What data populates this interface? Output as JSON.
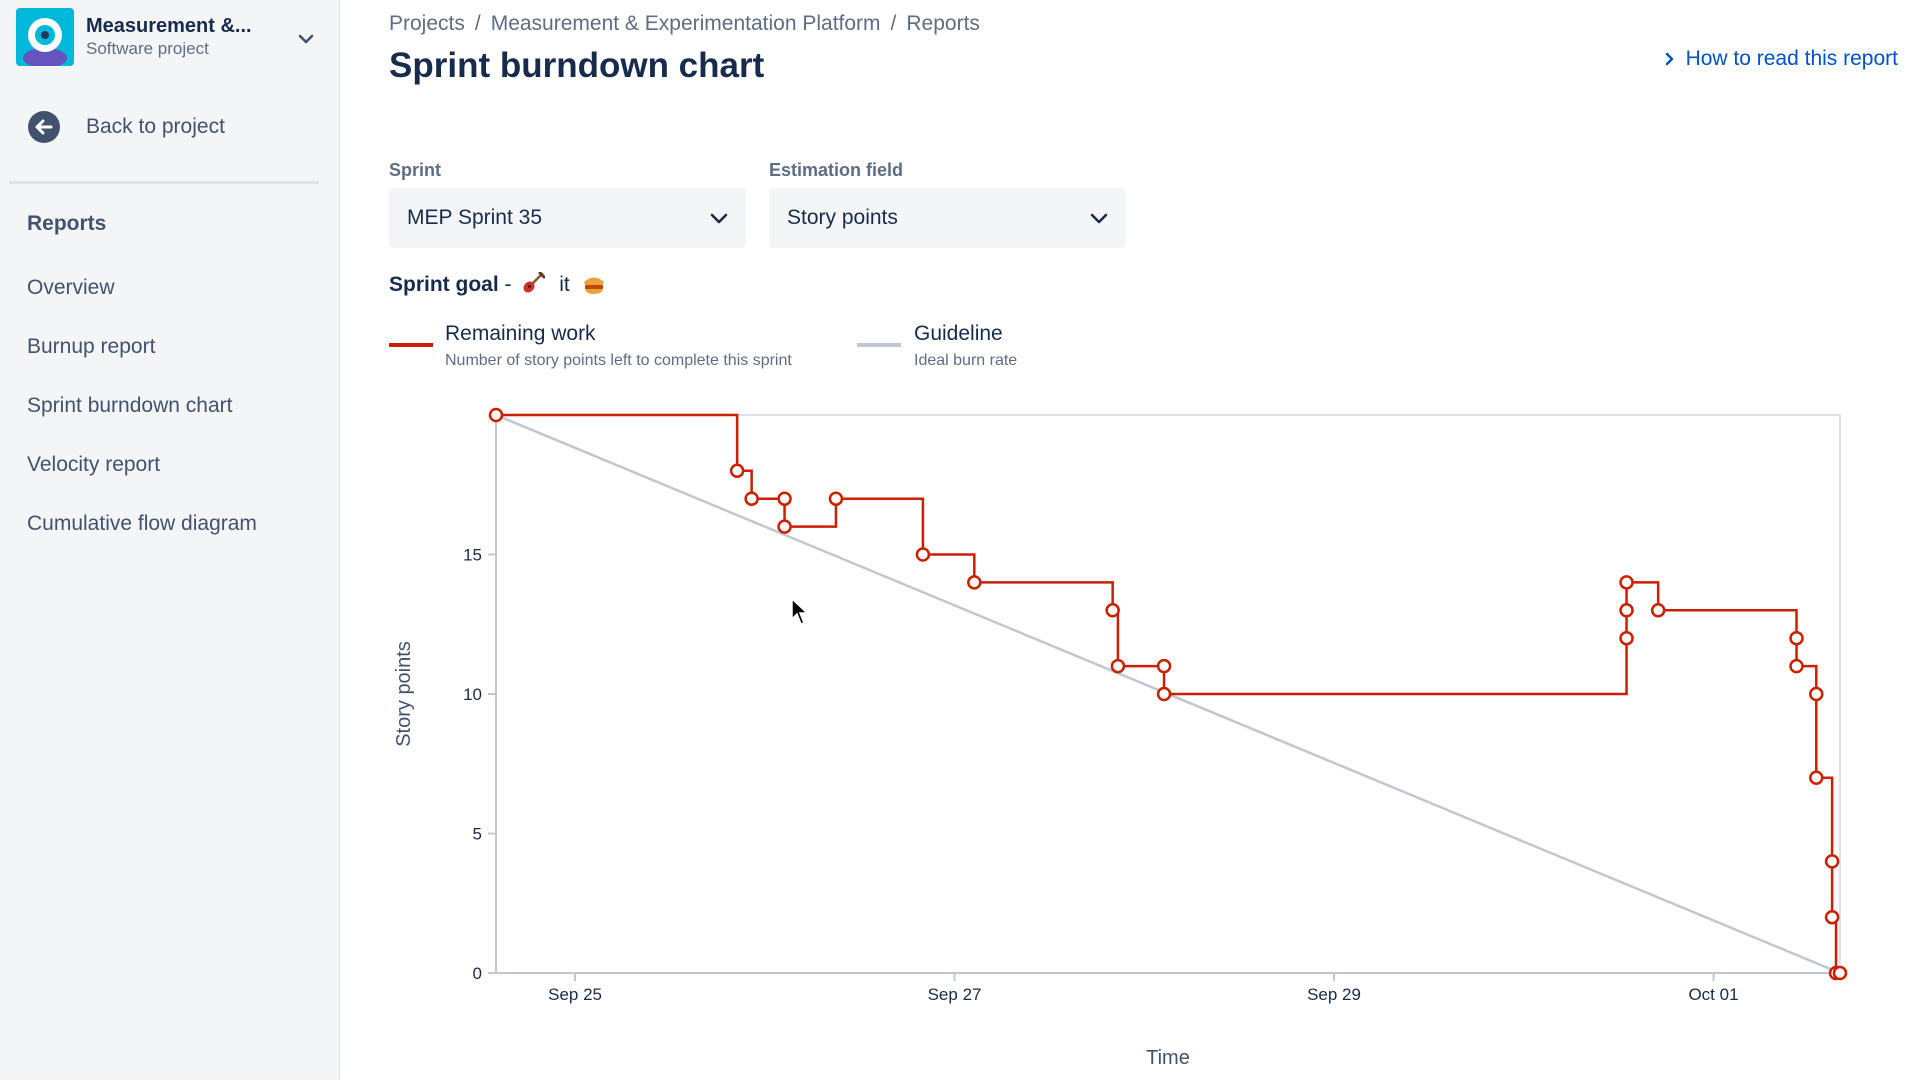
{
  "sidebar": {
    "project_name": "Measurement &...",
    "project_type": "Software project",
    "back_label": "Back to project",
    "section_heading": "Reports",
    "items": [
      {
        "label": "Overview"
      },
      {
        "label": "Burnup report"
      },
      {
        "label": "Sprint burndown chart"
      },
      {
        "label": "Velocity report"
      },
      {
        "label": "Cumulative flow diagram"
      }
    ]
  },
  "breadcrumb": [
    "Projects",
    "Measurement & Experimentation Platform",
    "Reports"
  ],
  "page_title": "Sprint burndown chart",
  "help_link": "How to read this report",
  "filters": {
    "sprint_label": "Sprint",
    "sprint_value": "MEP Sprint 35",
    "estimation_label": "Estimation field",
    "estimation_value": "Story points"
  },
  "sprint_goal": {
    "label": "Sprint goal",
    "text": "it"
  },
  "legend": [
    {
      "title": "Remaining work",
      "subtitle": "Number of story points left to complete this sprint",
      "color": "#cc1f00"
    },
    {
      "title": "Guideline",
      "subtitle": "Ideal burn rate",
      "color": "#c1c7d0"
    }
  ],
  "chart_data": {
    "type": "line",
    "xlabel": "Time",
    "ylabel": "Story points",
    "ylim": [
      0,
      20
    ],
    "xlim": [
      "2023-09-24 14:00",
      "2023-10-01 16:00"
    ],
    "yticks": [
      0,
      5,
      10,
      15
    ],
    "xticks": [
      {
        "label": "Sep 25",
        "at": "2023-09-25 00:00"
      },
      {
        "label": "Sep 27",
        "at": "2023-09-27 00:00"
      },
      {
        "label": "Sep 29",
        "at": "2023-09-29 00:00"
      },
      {
        "label": "Oct 01",
        "at": "2023-10-01 00:00"
      }
    ],
    "grid": false,
    "series": [
      {
        "name": "Remaining work",
        "color": "#cc1f00",
        "step": true,
        "x": [
          "2023-09-24 14:00",
          "2023-09-25 20:30",
          "2023-09-25 22:20",
          "2023-09-26 02:30",
          "2023-09-26 02:30",
          "2023-09-26 09:00",
          "2023-09-26 20:00",
          "2023-09-27 02:30",
          "2023-09-27 20:00",
          "2023-09-27 20:40",
          "2023-09-28 02:30",
          "2023-09-28 02:30",
          "2023-09-30 13:00",
          "2023-09-30 13:00",
          "2023-09-30 13:00",
          "2023-09-30 17:00",
          "2023-10-01 10:30",
          "2023-10-01 10:30",
          "2023-10-01 13:00",
          "2023-10-01 13:00",
          "2023-10-01 15:00",
          "2023-10-01 15:00",
          "2023-10-01 15:30",
          "2023-10-01 16:00"
        ],
        "y": [
          20,
          18,
          17,
          17,
          16,
          17,
          15,
          14,
          13,
          11,
          11,
          10,
          12,
          13,
          14,
          13,
          12,
          11,
          10,
          7,
          4,
          2,
          0,
          0
        ]
      },
      {
        "name": "Guideline",
        "color": "#c1c7d0",
        "x": [
          "2023-09-24 14:00",
          "2023-10-01 16:00"
        ],
        "y": [
          20,
          0
        ]
      }
    ]
  },
  "colors": {
    "accent": "#0052cc",
    "remaining_work": "#cc1f00",
    "guideline": "#c1c7d0",
    "sidebar_bg": "#f4f5f7",
    "project_avatar": "#00b8d9"
  }
}
